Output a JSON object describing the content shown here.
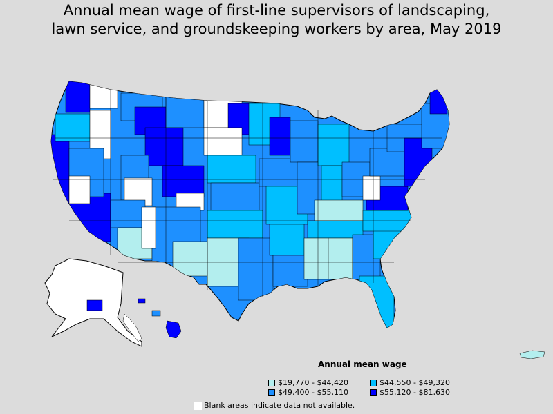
{
  "title": {
    "line1": "Annual mean wage of first-line supervisors of landscaping,",
    "line2": "lawn service, and groundskeeping workers by area, May 2019"
  },
  "legend": {
    "title": "Annual mean wage",
    "items": [
      {
        "label": "$19,770 - $44,420",
        "color": "#b3eeee"
      },
      {
        "label": "$44,550 - $49,320",
        "color": "#00bfff"
      },
      {
        "label": "$49,400 - $55,110",
        "color": "#1e90ff"
      },
      {
        "label": "$55,120 - $81,630",
        "color": "#0000ff"
      }
    ]
  },
  "note": {
    "text": "Blank areas indicate data not available.",
    "color": "#ffffff"
  },
  "colors": {
    "background": "#dcdcdc",
    "border": "#000000",
    "blank": "#ffffff"
  },
  "map": {
    "regions": [
      "Contiguous United States",
      "Alaska",
      "Hawaii",
      "Puerto Rico"
    ]
  }
}
